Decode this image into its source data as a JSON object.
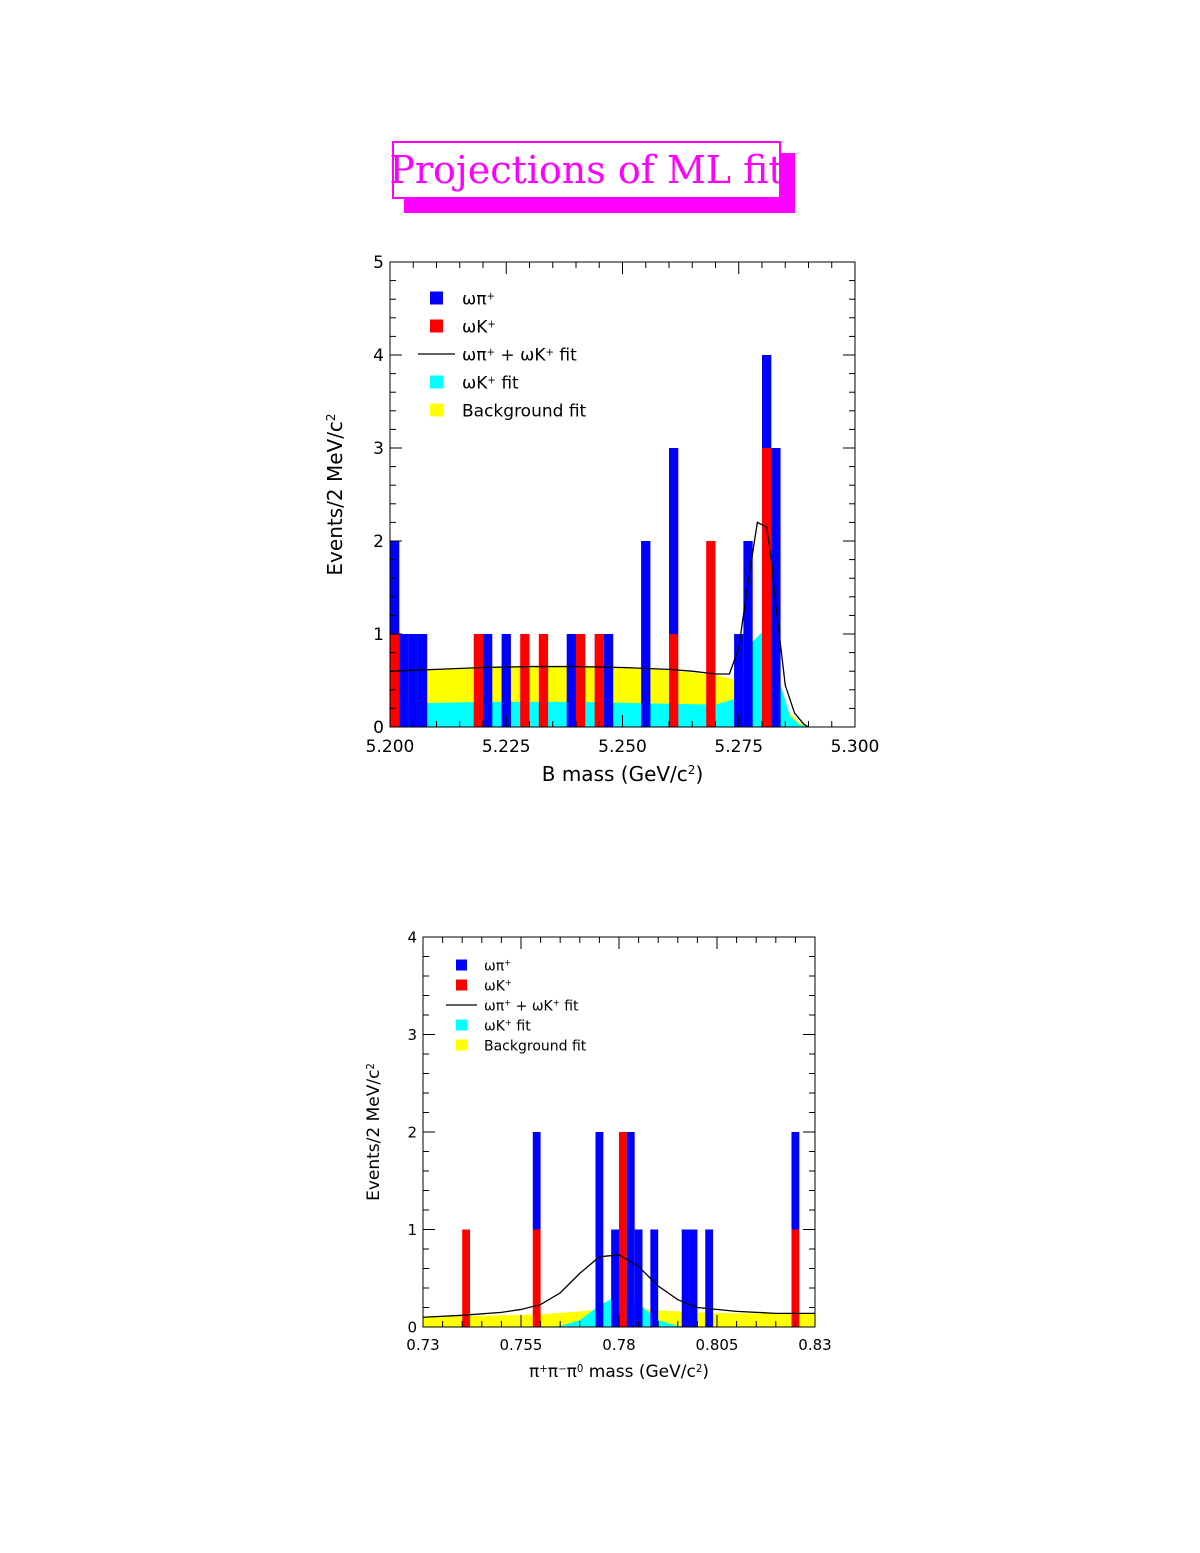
{
  "page_title": "Projections of ML fit",
  "colors": {
    "title": "#ff00ff",
    "omega_pi": "#0000ff",
    "omega_k": "#ff0000",
    "omega_k_fit": "#00ffff",
    "background_fit": "#ffff00",
    "total_fit": "#000000"
  },
  "legend": [
    {
      "key": "omega_pi",
      "kind": "box",
      "label": "ωπ",
      "sup": "+"
    },
    {
      "key": "omega_k",
      "kind": "box",
      "label": "ωK",
      "sup": "+"
    },
    {
      "key": "total_fit",
      "kind": "line",
      "label": "ωπ",
      "sup": "+",
      "label2": " + ωK",
      "sup2": "+",
      "label3": " fit"
    },
    {
      "key": "omega_k_fit",
      "kind": "box",
      "label": "ωK",
      "sup": "+",
      "label2": " fit"
    },
    {
      "key": "background_fit",
      "kind": "box",
      "label": "Background fit"
    }
  ],
  "chart_data": [
    {
      "type": "bar",
      "stacked": true,
      "xlabel": "B mass (GeV/c",
      "xlabel_sup": "2",
      "xlabel_end": ")",
      "ylabel": "Events/2 MeV/c",
      "ylabel_sup": "2",
      "xlim": [
        5.2,
        5.3
      ],
      "ylim": [
        0,
        5
      ],
      "bin_width": 0.002,
      "xticks": [
        "5.200",
        "5.225",
        "5.250",
        "5.275",
        "5.300"
      ],
      "yticks": [
        "0",
        "1",
        "2",
        "3",
        "4",
        "5"
      ],
      "bars": [
        {
          "x": 5.2,
          "k": 1,
          "pi": 1
        },
        {
          "x": 5.202,
          "k": 0,
          "pi": 1
        },
        {
          "x": 5.204,
          "k": 0,
          "pi": 1
        },
        {
          "x": 5.206,
          "k": 0,
          "pi": 1
        },
        {
          "x": 5.218,
          "k": 1,
          "pi": 0
        },
        {
          "x": 5.22,
          "k": 0,
          "pi": 1
        },
        {
          "x": 5.224,
          "k": 0,
          "pi": 1
        },
        {
          "x": 5.228,
          "k": 1,
          "pi": 0
        },
        {
          "x": 5.232,
          "k": 1,
          "pi": 0
        },
        {
          "x": 5.238,
          "k": 0,
          "pi": 1
        },
        {
          "x": 5.24,
          "k": 1,
          "pi": 0
        },
        {
          "x": 5.244,
          "k": 1,
          "pi": 0
        },
        {
          "x": 5.246,
          "k": 0,
          "pi": 1
        },
        {
          "x": 5.254,
          "k": 0,
          "pi": 2
        },
        {
          "x": 5.26,
          "k": 1,
          "pi": 2
        },
        {
          "x": 5.268,
          "k": 2,
          "pi": 0
        },
        {
          "x": 5.274,
          "k": 0,
          "pi": 1
        },
        {
          "x": 5.276,
          "k": 0,
          "pi": 2
        },
        {
          "x": 5.28,
          "k": 3,
          "pi": 1
        },
        {
          "x": 5.282,
          "k": 0,
          "pi": 3
        }
      ],
      "background_fit": {
        "x": [
          5.2,
          5.21,
          5.22,
          5.23,
          5.24,
          5.25,
          5.26,
          5.27,
          5.275,
          5.28,
          5.285,
          5.288,
          5.29
        ],
        "y": [
          0.6,
          0.62,
          0.64,
          0.65,
          0.65,
          0.64,
          0.61,
          0.56,
          0.5,
          0.4,
          0.2,
          0.05,
          0
        ]
      },
      "omega_k_fit": {
        "x": [
          5.2,
          5.21,
          5.22,
          5.23,
          5.24,
          5.25,
          5.26,
          5.27,
          5.274,
          5.276,
          5.278,
          5.28,
          5.282,
          5.284,
          5.286,
          5.288,
          5.29
        ],
        "y": [
          0.25,
          0.26,
          0.27,
          0.27,
          0.27,
          0.26,
          0.25,
          0.24,
          0.3,
          0.6,
          0.92,
          1.02,
          0.85,
          0.45,
          0.12,
          0.03,
          0
        ]
      },
      "total_fit": {
        "x": [
          5.2,
          5.21,
          5.22,
          5.23,
          5.24,
          5.25,
          5.26,
          5.265,
          5.27,
          5.273,
          5.275,
          5.277,
          5.279,
          5.281,
          5.282,
          5.283,
          5.285,
          5.287,
          5.289,
          5.29
        ],
        "y": [
          0.6,
          0.62,
          0.64,
          0.65,
          0.65,
          0.64,
          0.62,
          0.6,
          0.57,
          0.57,
          0.85,
          1.55,
          2.2,
          2.15,
          1.8,
          1.3,
          0.45,
          0.15,
          0.03,
          0
        ]
      }
    },
    {
      "type": "bar",
      "stacked": true,
      "xlabel_pre": "π",
      "xlabel_sup1": "+",
      "xlabel_mid1": "π",
      "xlabel_sup2": "−",
      "xlabel_mid2": "π",
      "xlabel_sup3": "0",
      "xlabel": " mass (GeV/c",
      "xlabel_sup": "2",
      "xlabel_end": ")",
      "ylabel": "Events/2 MeV/c",
      "ylabel_sup": "2",
      "xlim": [
        0.73,
        0.83
      ],
      "ylim": [
        0,
        4
      ],
      "bin_width": 0.002,
      "xticks": [
        "0.73",
        "0.755",
        "0.78",
        "0.805",
        "0.83"
      ],
      "xtick_values": [
        0.73,
        0.755,
        0.78,
        0.805,
        0.83
      ],
      "yticks": [
        "0",
        "1",
        "2",
        "3",
        "4"
      ],
      "bars": [
        {
          "x": 0.74,
          "k": 1,
          "pi": 0
        },
        {
          "x": 0.758,
          "k": 1,
          "pi": 1
        },
        {
          "x": 0.774,
          "k": 0,
          "pi": 2
        },
        {
          "x": 0.778,
          "k": 0,
          "pi": 1
        },
        {
          "x": 0.78,
          "k": 2,
          "pi": 0
        },
        {
          "x": 0.782,
          "k": 0,
          "pi": 2
        },
        {
          "x": 0.784,
          "k": 0,
          "pi": 1
        },
        {
          "x": 0.788,
          "k": 0,
          "pi": 1
        },
        {
          "x": 0.796,
          "k": 0,
          "pi": 1
        },
        {
          "x": 0.798,
          "k": 0,
          "pi": 1
        },
        {
          "x": 0.802,
          "k": 0,
          "pi": 1
        },
        {
          "x": 0.824,
          "k": 1,
          "pi": 1
        }
      ],
      "background_fit": {
        "x": [
          0.73,
          0.74,
          0.75,
          0.76,
          0.77,
          0.775,
          0.78,
          0.785,
          0.79,
          0.8,
          0.81,
          0.82,
          0.83
        ],
        "y": [
          0.1,
          0.11,
          0.12,
          0.13,
          0.16,
          0.18,
          0.2,
          0.19,
          0.17,
          0.15,
          0.14,
          0.14,
          0.14
        ]
      },
      "omega_k_fit": {
        "x": [
          0.73,
          0.76,
          0.765,
          0.77,
          0.775,
          0.78,
          0.785,
          0.79,
          0.795,
          0.8,
          0.83
        ],
        "y": [
          0,
          0,
          0.01,
          0.07,
          0.22,
          0.33,
          0.24,
          0.07,
          0.01,
          0,
          0
        ]
      },
      "total_fit": {
        "x": [
          0.73,
          0.74,
          0.75,
          0.755,
          0.76,
          0.765,
          0.77,
          0.775,
          0.78,
          0.785,
          0.79,
          0.795,
          0.8,
          0.81,
          0.82,
          0.83
        ],
        "y": [
          0.1,
          0.12,
          0.15,
          0.18,
          0.23,
          0.35,
          0.55,
          0.72,
          0.74,
          0.62,
          0.42,
          0.28,
          0.2,
          0.16,
          0.14,
          0.14
        ]
      }
    }
  ]
}
